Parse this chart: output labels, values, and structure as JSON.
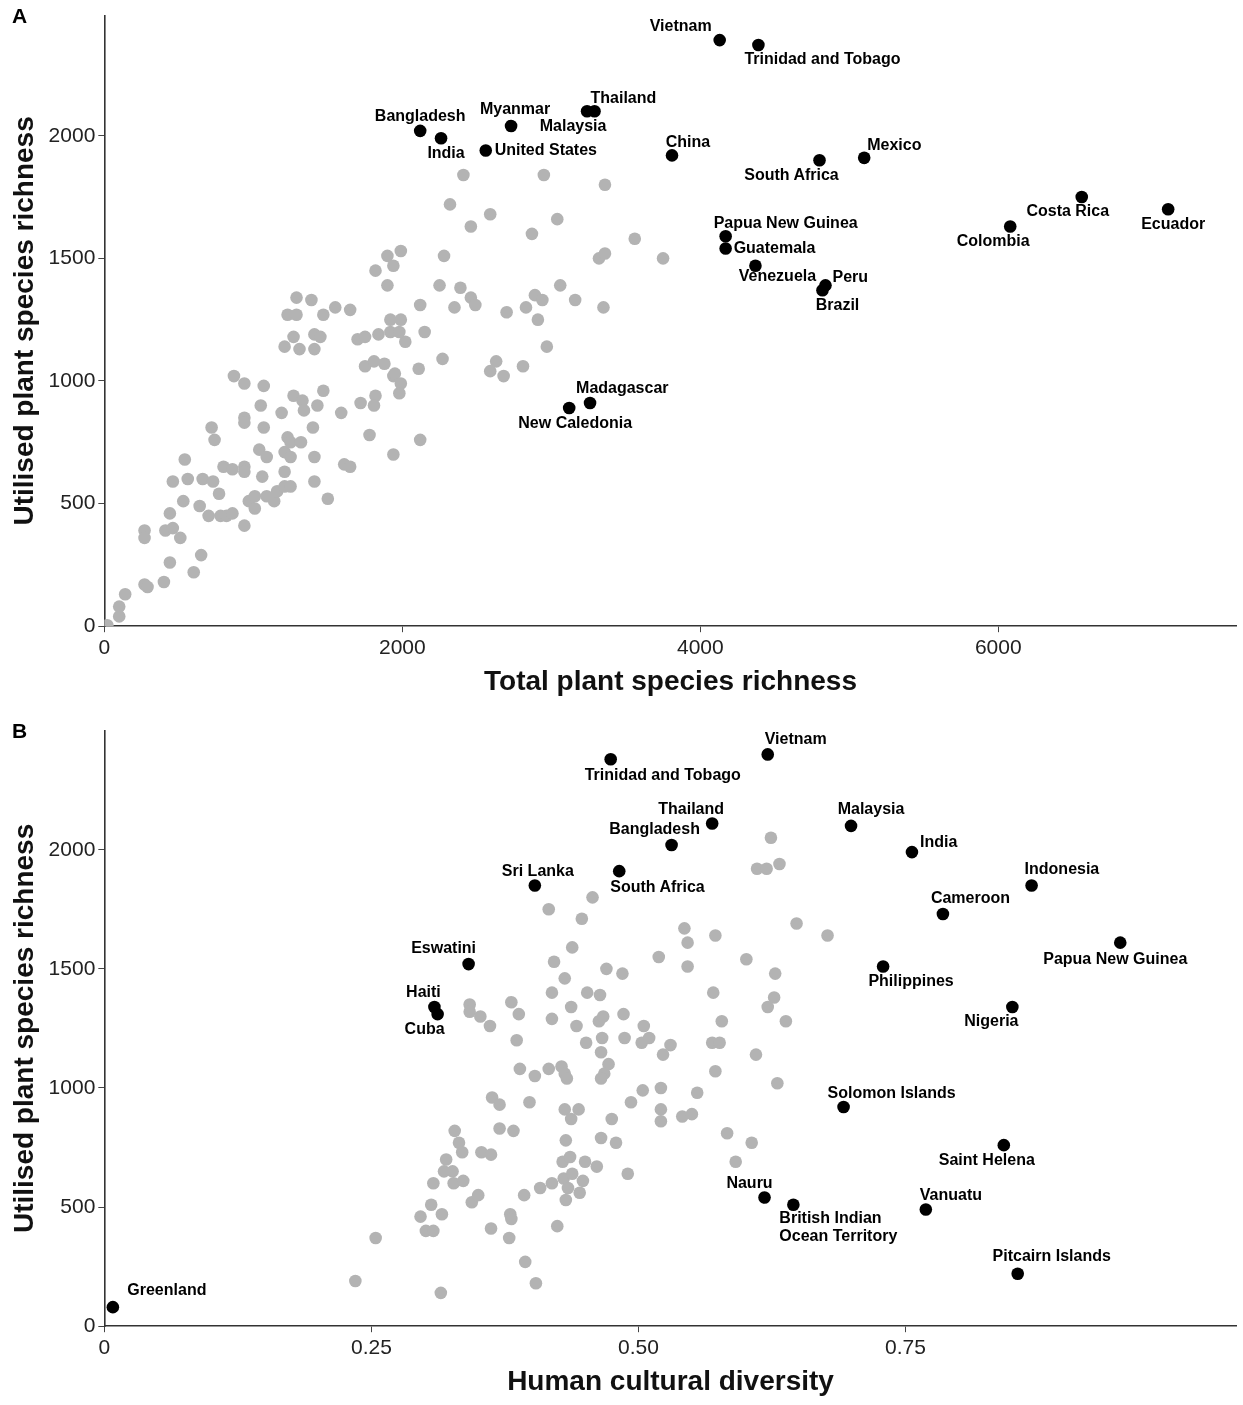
{
  "chart_data": [
    {
      "type": "scatter",
      "title": "A",
      "xlabel": "Total plant species richness",
      "ylabel": "Utilised plant species richness",
      "xlim": [
        0,
        7600
      ],
      "ylim": [
        0,
        2490
      ],
      "xticks": [
        0,
        2000,
        4000,
        6000
      ],
      "yticks": [
        0,
        500,
        1000,
        1500,
        2000
      ],
      "grid": false,
      "marker": "circle",
      "series": [
        {
          "color": "#b3b3b3",
          "x": [
            20,
            100,
            100,
            140,
            270,
            290,
            400,
            440,
            600,
            650,
            270,
            270,
            410,
            460,
            510,
            440,
            530,
            460,
            560,
            540,
            640,
            660,
            730,
            770,
            700,
            780,
            820,
            860,
            940,
            800,
            860,
            940,
            940,
            970,
            1010,
            1010,
            1060,
            1090,
            1140,
            1160,
            1210,
            1250,
            1210,
            720,
            740,
            870,
            940,
            1070,
            940,
            940,
            1050,
            1070,
            1040,
            1090,
            1190,
            1230,
            1210,
            1250,
            1250,
            1320,
            1270,
            1330,
            1340,
            1400,
            1430,
            1470,
            1410,
            1410,
            1500,
            1590,
            1610,
            1650,
            1780,
            1720,
            1820,
            1810,
            1940,
            1940,
            1210,
            1270,
            1310,
            1410,
            1410,
            1450,
            1230,
            1290,
            1290,
            1390,
            1470,
            1550,
            1650,
            1700,
            1750,
            1840,
            1920,
            1920,
            1750,
            1810,
            1880,
            1820,
            1900,
            1900,
            1940,
            2410,
            2950,
            3360,
            2320,
            2590,
            2460,
            3040,
            2870,
            3560,
            3320,
            3360,
            3750,
            2280,
            1990,
            2250,
            2390,
            2460,
            2490,
            2350,
            2120,
            2150,
            2020,
            1990,
            1980,
            2700,
            2830,
            2890,
            2940,
            2910,
            3060,
            3160,
            3350,
            2970,
            2270,
            2110,
            1950,
            1990,
            1980,
            2630,
            2590,
            2680,
            2810,
            2120
          ],
          "values": [
            4,
            80,
            40,
            130,
            170,
            160,
            180,
            260,
            220,
            290,
            390,
            360,
            390,
            400,
            360,
            460,
            510,
            590,
            600,
            680,
            490,
            600,
            590,
            540,
            450,
            450,
            450,
            460,
            410,
            650,
            640,
            650,
            630,
            510,
            530,
            480,
            610,
            530,
            510,
            550,
            570,
            570,
            630,
            810,
            760,
            1020,
            990,
            980,
            850,
            830,
            900,
            810,
            720,
            690,
            870,
            770,
            710,
            690,
            750,
            750,
            940,
            920,
            880,
            810,
            900,
            960,
            690,
            590,
            520,
            870,
            660,
            650,
            780,
            910,
            940,
            900,
            700,
            1020,
            1140,
            1180,
            1130,
            1130,
            1190,
            1180,
            1270,
            1270,
            1340,
            1330,
            1270,
            1300,
            1290,
            1170,
            1180,
            1190,
            1200,
            1250,
            1060,
            1080,
            1070,
            1450,
            1390,
            1510,
            1470,
            1840,
            1840,
            1800,
            1720,
            1680,
            1630,
            1660,
            1600,
            1580,
            1500,
            1520,
            1500,
            1510,
            1530,
            1390,
            1380,
            1340,
            1310,
            1300,
            1310,
            1200,
            1160,
            1250,
            1200,
            1280,
            1300,
            1350,
            1330,
            1250,
            1390,
            1330,
            1300,
            1140,
            1090,
            1050,
            1030,
            990,
            950,
            1080,
            1040,
            1020,
            1060,
            760
          ]
        },
        {
          "color": "#000000",
          "x": [
            4130,
            4390,
            3290,
            3240,
            2730,
            2120,
            2260,
            2560,
            3810,
            4800,
            5100,
            6560,
            7140,
            6080,
            4170,
            4170,
            4370,
            4840,
            4820,
            3260,
            3120
          ],
          "values": [
            2390,
            2370,
            2100,
            2100,
            2040,
            2020,
            1990,
            1940,
            1920,
            1900,
            1910,
            1750,
            1700,
            1630,
            1590,
            1540,
            1470,
            1390,
            1370,
            910,
            890
          ]
        }
      ],
      "annotations": [
        {
          "text": "Vietnam",
          "x": 4130,
          "y": 2390
        },
        {
          "text": "Trinidad and Tobago",
          "x": 4390,
          "y": 2370
        },
        {
          "text": "Thailand",
          "x": 3290,
          "y": 2100
        },
        {
          "text": "Malaysia",
          "x": 3240,
          "y": 2100
        },
        {
          "text": "Myanmar",
          "x": 2730,
          "y": 2040
        },
        {
          "text": "Bangladesh",
          "x": 2120,
          "y": 2020
        },
        {
          "text": "India",
          "x": 2260,
          "y": 1990
        },
        {
          "text": "United States",
          "x": 2560,
          "y": 1940
        },
        {
          "text": "China",
          "x": 3810,
          "y": 1920
        },
        {
          "text": "South Africa",
          "x": 4800,
          "y": 1900
        },
        {
          "text": "Mexico",
          "x": 5100,
          "y": 1910
        },
        {
          "text": "Costa Rica",
          "x": 6560,
          "y": 1750
        },
        {
          "text": "Ecuador",
          "x": 7140,
          "y": 1700
        },
        {
          "text": "Colombia",
          "x": 6080,
          "y": 1630
        },
        {
          "text": "Papua New Guinea",
          "x": 4170,
          "y": 1590
        },
        {
          "text": "Guatemala",
          "x": 4170,
          "y": 1540
        },
        {
          "text": "Venezuela",
          "x": 4370,
          "y": 1470
        },
        {
          "text": "Peru",
          "x": 4840,
          "y": 1390
        },
        {
          "text": "Brazil",
          "x": 4820,
          "y": 1370
        },
        {
          "text": "Madagascar",
          "x": 3260,
          "y": 910
        },
        {
          "text": "New Caledonia",
          "x": 3120,
          "y": 890
        }
      ]
    },
    {
      "type": "scatter",
      "title": "B",
      "xlabel": "Human cultural diversity",
      "ylabel": "Utilised plant species richness",
      "xlim": [
        0,
        1.06
      ],
      "ylim": [
        0,
        2500
      ],
      "xticks": [
        0,
        0.25,
        {
          "value": 0.5,
          "label": "0.50"
        },
        0.75
      ],
      "yticks": [
        0,
        500,
        1000,
        1500,
        2000
      ],
      "grid": false,
      "marker": "circle",
      "series": [
        {
          "color": "#b3b3b3",
          "x": [
            0.457,
            0.416,
            0.447,
            0.438,
            0.421,
            0.431,
            0.419,
            0.452,
            0.437,
            0.419,
            0.442,
            0.451,
            0.342,
            0.342,
            0.352,
            0.361,
            0.381,
            0.388,
            0.386,
            0.389,
            0.403,
            0.416,
            0.428,
            0.431,
            0.433,
            0.363,
            0.37,
            0.398,
            0.431,
            0.444,
            0.437,
            0.328,
            0.37,
            0.383,
            0.332,
            0.335,
            0.353,
            0.362,
            0.432,
            0.32,
            0.318,
            0.326,
            0.327,
            0.336,
            0.308,
            0.344,
            0.35,
            0.393,
            0.408,
            0.419,
            0.429,
            0.436,
            0.45,
            0.43,
            0.438,
            0.448,
            0.434,
            0.445,
            0.432,
            0.306,
            0.296,
            0.316,
            0.301,
            0.308,
            0.38,
            0.381,
            0.362,
            0.379,
            0.424,
            0.254,
            0.394,
            0.235,
            0.404,
            0.315,
            0.624,
            0.611,
            0.62,
            0.632,
            0.648,
            0.677,
            0.543,
            0.546,
            0.572,
            0.519,
            0.546,
            0.601,
            0.628,
            0.47,
            0.485,
            0.57,
            0.627,
            0.621,
            0.578,
            0.638,
            0.464,
            0.486,
            0.463,
            0.467,
            0.505,
            0.466,
            0.487,
            0.503,
            0.51,
            0.53,
            0.523,
            0.569,
            0.576,
            0.465,
            0.472,
            0.468,
            0.465,
            0.61,
            0.572,
            0.63,
            0.504,
            0.521,
            0.493,
            0.555,
            0.521,
            0.521,
            0.541,
            0.55,
            0.475,
            0.465,
            0.479,
            0.583,
            0.606,
            0.461,
            0.49,
            0.591
          ],
          "values": [
            1800,
            1750,
            1710,
            1590,
            1530,
            1460,
            1400,
            1400,
            1340,
            1290,
            1260,
            1190,
            1350,
            1320,
            1300,
            1260,
            1360,
            1310,
            1200,
            1080,
            1050,
            1080,
            1090,
            1060,
            1040,
            960,
            930,
            940,
            910,
            910,
            870,
            820,
            830,
            820,
            770,
            730,
            730,
            720,
            780,
            700,
            650,
            650,
            600,
            610,
            600,
            520,
            550,
            550,
            580,
            600,
            690,
            710,
            690,
            620,
            640,
            610,
            580,
            560,
            530,
            510,
            460,
            470,
            400,
            400,
            470,
            450,
            410,
            370,
            420,
            370,
            270,
            190,
            180,
            140,
            2050,
            1920,
            1920,
            1940,
            1690,
            1640,
            1670,
            1610,
            1640,
            1550,
            1510,
            1540,
            1480,
            1500,
            1480,
            1400,
            1380,
            1340,
            1280,
            1280,
            1390,
            1310,
            1280,
            1300,
            1260,
            1210,
            1210,
            1190,
            1210,
            1180,
            1140,
            1190,
            1190,
            1150,
            1100,
            1060,
            1040,
            1140,
            1070,
            1020,
            990,
            1000,
            940,
            980,
            910,
            860,
            880,
            890,
            870,
            790,
            770,
            810,
            770,
            670,
            640,
            690
          ]
        },
        {
          "color": "#000000",
          "x": [
            0.621,
            0.474,
            0.569,
            0.531,
            0.699,
            0.756,
            0.868,
            0.482,
            0.403,
            0.785,
            0.951,
            0.341,
            0.729,
            0.309,
            0.312,
            0.85,
            0.692,
            0.842,
            0.618,
            0.645,
            0.769,
            0.855,
            0.008
          ],
          "values": [
            2400,
            2380,
            2110,
            2020,
            2100,
            1990,
            1850,
            1910,
            1850,
            1730,
            1610,
            1520,
            1510,
            1340,
            1310,
            1340,
            920,
            760,
            540,
            510,
            490,
            220,
            80
          ]
        }
      ],
      "annotations": [
        {
          "text": "Vietnam",
          "x": 0.621,
          "y": 2400
        },
        {
          "text": "Trinidad and Tobago",
          "x": 0.474,
          "y": 2380
        },
        {
          "text": "Thailand",
          "x": 0.569,
          "y": 2110
        },
        {
          "text": "Bangladesh",
          "x": 0.531,
          "y": 2020
        },
        {
          "text": "Malaysia",
          "x": 0.699,
          "y": 2100
        },
        {
          "text": "India",
          "x": 0.756,
          "y": 1990
        },
        {
          "text": "Indonesia",
          "x": 0.868,
          "y": 1850
        },
        {
          "text": "South Africa",
          "x": 0.482,
          "y": 1910
        },
        {
          "text": "Sri Lanka",
          "x": 0.403,
          "y": 1850
        },
        {
          "text": "Cameroon",
          "x": 0.785,
          "y": 1730
        },
        {
          "text": "Papua New Guinea",
          "x": 0.951,
          "y": 1610
        },
        {
          "text": "Eswatini",
          "x": 0.341,
          "y": 1520
        },
        {
          "text": "Philippines",
          "x": 0.729,
          "y": 1510
        },
        {
          "text": "Haiti",
          "x": 0.309,
          "y": 1340
        },
        {
          "text": "Cuba",
          "x": 0.312,
          "y": 1310
        },
        {
          "text": "Nigeria",
          "x": 0.85,
          "y": 1340
        },
        {
          "text": "Solomon Islands",
          "x": 0.692,
          "y": 920
        },
        {
          "text": "Saint Helena",
          "x": 0.842,
          "y": 760
        },
        {
          "text": "Nauru",
          "x": 0.618,
          "y": 540
        },
        {
          "text": "British Indian Ocean Territory",
          "x": 0.645,
          "y": 510
        },
        {
          "text": "Vanuatu",
          "x": 0.769,
          "y": 490
        },
        {
          "text": "Pitcairn Islands",
          "x": 0.855,
          "y": 220
        },
        {
          "text": "Greenland",
          "x": 0.008,
          "y": 80
        }
      ]
    }
  ]
}
